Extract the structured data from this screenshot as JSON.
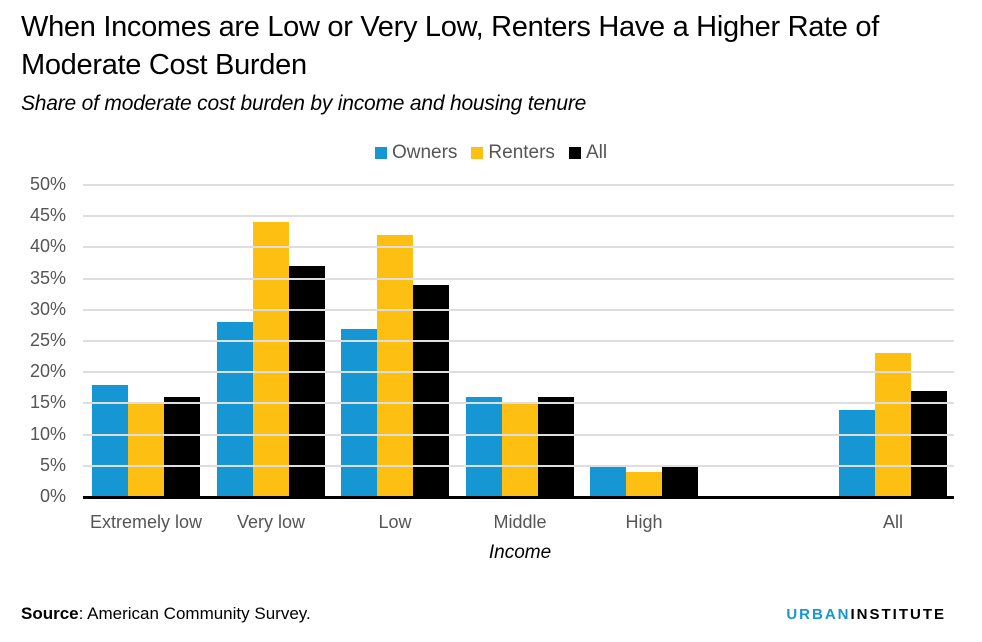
{
  "header": {
    "title": "When Incomes are Low or Very Low, Renters Have a Higher Rate of Moderate Cost Burden",
    "subtitle": "Share of moderate cost burden by income and housing tenure"
  },
  "legend": [
    {
      "label": "Owners",
      "color": "#1696d2"
    },
    {
      "label": "Renters",
      "color": "#fdbf11"
    },
    {
      "label": "All",
      "color": "#000000"
    }
  ],
  "colors": {
    "owners": "#1696d2",
    "renters": "#fdbf11",
    "all": "#000000",
    "grid": "#dedede"
  },
  "footer": {
    "source_label": "Source",
    "source_text": ": American Community Survey.",
    "brand_urban": "URBAN",
    "brand_institute": "INSTITUTE"
  },
  "chart_data": {
    "type": "bar",
    "title": "When Incomes are Low or Very Low, Renters Have a Higher Rate of Moderate Cost Burden",
    "subtitle": "Share of moderate cost burden by income and housing tenure",
    "xlabel": "Income",
    "ylabel": "",
    "categories": [
      "Extremely low",
      "Very low",
      "Low",
      "Middle",
      "High",
      "",
      "All"
    ],
    "series": [
      {
        "name": "Owners",
        "color": "#1696d2",
        "values": [
          18,
          28,
          27,
          16,
          5,
          null,
          14
        ]
      },
      {
        "name": "Renters",
        "color": "#fdbf11",
        "values": [
          15,
          44,
          42,
          15,
          4,
          null,
          23
        ]
      },
      {
        "name": "All",
        "color": "#000000",
        "values": [
          16,
          37,
          34,
          16,
          5,
          null,
          17
        ]
      }
    ],
    "ylim": [
      0,
      50
    ],
    "yticks": [
      "0%",
      "5%",
      "10%",
      "15%",
      "20%",
      "25%",
      "30%",
      "35%",
      "40%",
      "45%",
      "50%"
    ],
    "grid": true,
    "legend_position": "top",
    "source": "Source: American Community Survey."
  }
}
